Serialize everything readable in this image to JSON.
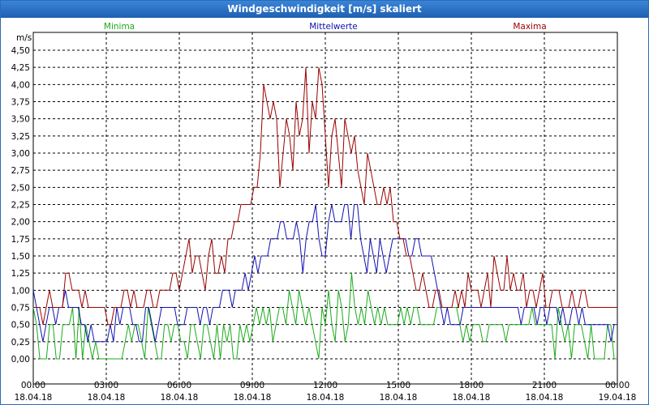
{
  "window": {
    "title": "Windgeschwindigkeit [m/s] skaliert"
  },
  "legend": {
    "min_label": "Minima",
    "mean_label": "Mittelwerte",
    "max_label": "Maxima"
  },
  "colors": {
    "min": "#1aaa1a",
    "mean": "#1010b0",
    "max": "#9a0000",
    "grid": "#000000"
  },
  "chart_data": {
    "type": "line",
    "title": "Windgeschwindigkeit [m/s] skaliert",
    "ylabel": "m/s",
    "ylim": [
      0,
      4.6
    ],
    "xlim_hours": [
      0,
      24
    ],
    "x_ticks": [
      {
        "t": "00:00",
        "d": "18.04.18"
      },
      {
        "t": "03:00",
        "d": "18.04.18"
      },
      {
        "t": "06:00",
        "d": "18.04.18"
      },
      {
        "t": "09:00",
        "d": "18.04.18"
      },
      {
        "t": "12:00",
        "d": "18.04.18"
      },
      {
        "t": "15:00",
        "d": "18.04.18"
      },
      {
        "t": "18:00",
        "d": "18.04.18"
      },
      {
        "t": "21:00",
        "d": "18.04.18"
      },
      {
        "t": "00:00",
        "d": "19.04.18"
      }
    ],
    "y_ticks": [
      "0,00",
      "0,25",
      "0,50",
      "0,75",
      "1,00",
      "1,25",
      "1,50",
      "1,75",
      "2,00",
      "2,25",
      "2,50",
      "2,75",
      "3,00",
      "3,25",
      "3,50",
      "3,75",
      "4,00",
      "4,25",
      "4,50"
    ],
    "grid": true,
    "sample_step_hours": 0.1667,
    "series": [
      {
        "name": "Minima",
        "color": "#1aaa1a",
        "values": [
          0.75,
          0.5,
          0,
          0,
          0,
          0.5,
          0.5,
          0,
          0,
          0.5,
          0.5,
          0.5,
          0.75,
          0,
          0.75,
          0,
          0.5,
          0.25,
          0,
          0.25,
          0,
          0,
          0,
          0,
          0,
          0,
          0,
          0,
          0.25,
          0.5,
          0.25,
          0.5,
          0.5,
          0.25,
          0,
          0.75,
          0.5,
          0.25,
          0,
          0,
          0.5,
          0.5,
          0.25,
          0.5,
          0.5,
          0.25,
          0.25,
          0,
          0.5,
          0.5,
          0.25,
          0,
          0.5,
          0.5,
          0.25,
          0,
          0.5,
          0,
          0.5,
          0.25,
          0.5,
          0,
          0,
          0.5,
          0.25,
          0.5,
          0.25,
          0.5,
          0.75,
          0.5,
          0.75,
          0.5,
          0.75,
          0.25,
          0.5,
          0.75,
          0.75,
          0.5,
          1,
          0.75,
          0.5,
          1,
          0.75,
          0.5,
          0.75,
          0.5,
          0.25,
          0,
          0.75,
          0.5,
          1,
          0.5,
          0.25,
          1,
          0.75,
          0.25,
          0.5,
          1.25,
          0.75,
          0.5,
          0.75,
          0.5,
          1,
          0.75,
          0.5,
          0.75,
          0.5,
          0.75,
          0.5,
          0.5,
          0.5,
          0.5,
          0.75,
          0.5,
          0.75,
          0.5,
          0.75,
          0.75,
          0.5,
          0.5,
          0.5,
          0.5,
          0.5,
          0.75,
          0.75,
          0.75,
          0.75,
          0.75,
          0.75,
          0.75,
          0.5,
          0.25,
          0.5,
          0.25,
          0.5,
          0.5,
          0.5,
          0.25,
          0.25,
          0.5,
          0.5,
          0.5,
          0.5,
          0.5,
          0.25,
          0.5,
          0.5,
          0.5,
          0.5,
          0.5,
          0.5,
          0.5,
          0.75,
          0.5,
          0.5,
          0.5,
          0.5,
          0.5,
          0.5,
          0,
          0.75,
          0.5,
          0.25,
          0.5,
          0,
          0.5,
          0.5,
          0.5,
          0.25,
          0,
          0.5,
          0,
          0,
          0,
          0,
          0.5,
          0.5,
          0,
          0
        ]
      },
      {
        "name": "Mittelwerte",
        "color": "#1010b0",
        "values": [
          1,
          0.75,
          0.5,
          0.25,
          0.5,
          0.75,
          0.75,
          0.5,
          0.75,
          0.75,
          1,
          0.75,
          0.75,
          0.75,
          0.75,
          0.5,
          0.5,
          0.25,
          0.5,
          0.25,
          0.25,
          0.25,
          0.25,
          0.25,
          0.5,
          0.25,
          0.75,
          0.5,
          0.75,
          0.75,
          0.75,
          0.5,
          0.5,
          0.25,
          0.25,
          0.75,
          0.75,
          0.5,
          0.25,
          0.5,
          0.75,
          0.75,
          0.75,
          0.75,
          0.75,
          0.5,
          0.5,
          0.5,
          0.75,
          0.75,
          0.75,
          0.75,
          0.5,
          0.75,
          0.75,
          0.5,
          0.75,
          0.75,
          0.75,
          1,
          1,
          1,
          0.75,
          1,
          1,
          1,
          1.25,
          1,
          1.25,
          1.5,
          1.25,
          1.5,
          1.5,
          1.5,
          1.75,
          1.75,
          1.75,
          2,
          2,
          1.75,
          1.75,
          1.75,
          2,
          1.75,
          1.25,
          1.75,
          2,
          2,
          2.25,
          1.75,
          1.5,
          1.5,
          2,
          2.25,
          2,
          2,
          2,
          2.25,
          2.25,
          1.75,
          2.25,
          2.25,
          1.75,
          1.5,
          1.25,
          1.75,
          1.5,
          1.25,
          1.75,
          1.5,
          1.25,
          1.5,
          1.75,
          1.75,
          1.75,
          1.75,
          1.75,
          1.5,
          1.5,
          1.75,
          1.75,
          1.5,
          1.5,
          1.5,
          1.5,
          1.25,
          1,
          0.75,
          0.5,
          0.75,
          0.5,
          0.5,
          0.5,
          0.5,
          0.75,
          0.75,
          0.75,
          0.75,
          0.75,
          0.75,
          0.75,
          0.75,
          0.75,
          0.75,
          0.75,
          0.75,
          0.75,
          0.75,
          0.75,
          0.75,
          0.75,
          0.75,
          0.5,
          0.75,
          0.75,
          0.75,
          0.75,
          0.5,
          0.75,
          0.75,
          0.5,
          0.75,
          0.75,
          0.75,
          0.5,
          0.75,
          0.5,
          0.5,
          0.75,
          0.75,
          0.5,
          0.75,
          0.5,
          0.5,
          0.5,
          0.5,
          0.5,
          0.5,
          0.5,
          0.5,
          0.25,
          0.5,
          0.5
        ]
      },
      {
        "name": "Maxima",
        "color": "#9a0000",
        "values": [
          0.75,
          0.75,
          0.75,
          0.5,
          0.75,
          1,
          0.75,
          0.75,
          0.75,
          0.75,
          1.25,
          1.25,
          1,
          1,
          1,
          0.75,
          1,
          0.75,
          0.75,
          0.75,
          0.75,
          0.75,
          0.75,
          0.5,
          0.5,
          0.75,
          0.75,
          0.75,
          1,
          1,
          0.75,
          1,
          0.75,
          0.75,
          0.75,
          1,
          1,
          0.75,
          0.75,
          1,
          1,
          1,
          1,
          1.25,
          1.25,
          1,
          1.25,
          1.5,
          1.75,
          1.25,
          1.5,
          1.5,
          1.25,
          1,
          1.5,
          1.75,
          1.25,
          1.25,
          1.5,
          1.25,
          1.75,
          1.75,
          2,
          2,
          2.25,
          2.25,
          2.25,
          2.25,
          2.5,
          2.5,
          3,
          4,
          3.75,
          3.5,
          3.75,
          3.5,
          2.5,
          3,
          3.5,
          3.25,
          2.75,
          3.75,
          3.25,
          3.5,
          4.25,
          3,
          3.75,
          3.5,
          4.25,
          4,
          3.25,
          2.5,
          3.25,
          3.5,
          3,
          2.5,
          3.5,
          3.25,
          3,
          3.25,
          2.75,
          2.5,
          2.25,
          3,
          2.75,
          2.5,
          2.25,
          2.25,
          2.5,
          2.25,
          2.5,
          2,
          2,
          1.75,
          1.75,
          1.5,
          1.5,
          1.25,
          1,
          1,
          1.25,
          1,
          0.75,
          0.75,
          1,
          1,
          0.75,
          0.75,
          0.75,
          0.75,
          1,
          0.75,
          1,
          0.75,
          1.25,
          1,
          1,
          1,
          0.75,
          1,
          1.25,
          0.75,
          1.5,
          1.25,
          1,
          1,
          1.5,
          1,
          1.25,
          1,
          1,
          1.25,
          0.75,
          1,
          1,
          0.75,
          1,
          1.25,
          0.75,
          0.75,
          1,
          1,
          1,
          0.75,
          0.75,
          0.75,
          1,
          0.75,
          0.75,
          1,
          1,
          0.75,
          0.75,
          0.75,
          0.75,
          0.75,
          0.75,
          0.75,
          0.75,
          0.75,
          0.75
        ]
      }
    ]
  }
}
